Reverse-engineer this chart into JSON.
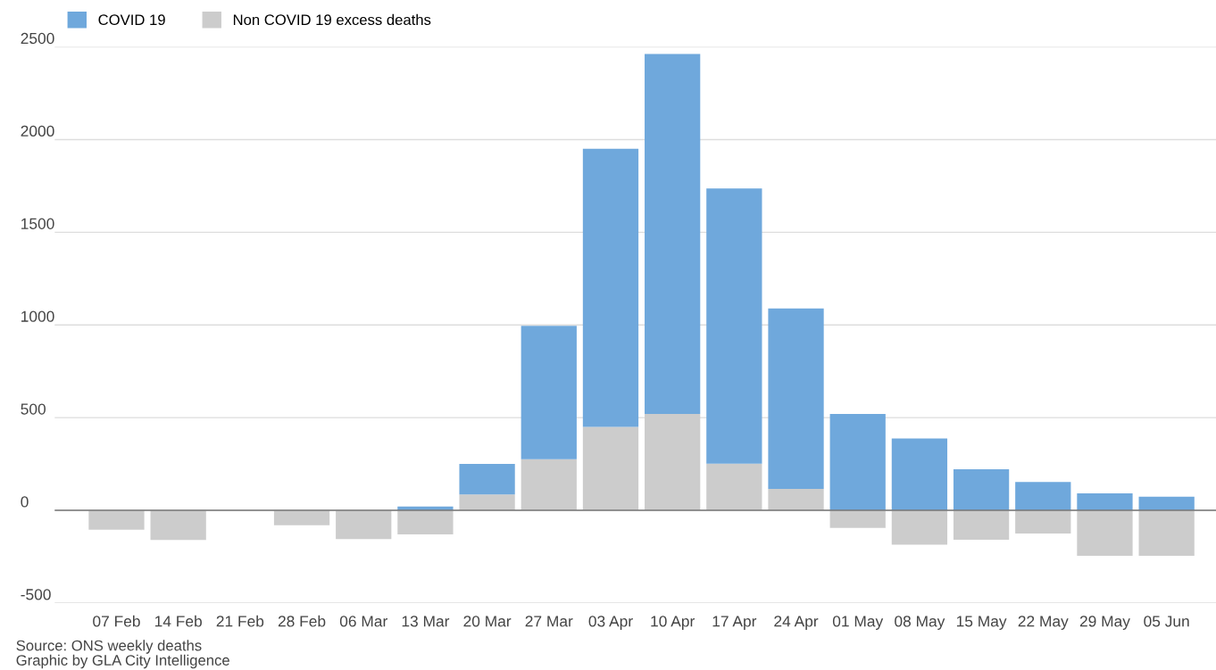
{
  "chart_data": {
    "type": "bar",
    "stacked": true,
    "categories": [
      "07 Feb",
      "14 Feb",
      "21 Feb",
      "28 Feb",
      "06 Mar",
      "13 Mar",
      "20 Mar",
      "27 Mar",
      "03 Apr",
      "10 Apr",
      "17 Apr",
      "24 Apr",
      "01 May",
      "08 May",
      "15 May",
      "22 May",
      "29 May",
      "05 Jun"
    ],
    "series": [
      {
        "name": "Non COVID 19 excess deaths",
        "color": "#cccccc",
        "values": [
          -105,
          -160,
          null,
          -80,
          -155,
          -130,
          85,
          275,
          450,
          520,
          251,
          116,
          -95,
          -185,
          -159,
          -125,
          -245,
          -245
        ]
      },
      {
        "name": "COVID 19",
        "color": "#6fa8dc",
        "values": [
          0,
          0,
          0,
          0,
          0,
          20,
          165,
          720,
          1500,
          1942,
          1485,
          973,
          520,
          387,
          221,
          153,
          92,
          73
        ]
      }
    ],
    "ylim": [
      -500,
      2500
    ],
    "yticks": [
      -500,
      0,
      500,
      1000,
      1500,
      2000,
      2500
    ],
    "grid": "y",
    "legend": "top left",
    "annotations": [
      "Source: ONS weekly deaths",
      "Graphic by GLA City Intelligence"
    ]
  }
}
